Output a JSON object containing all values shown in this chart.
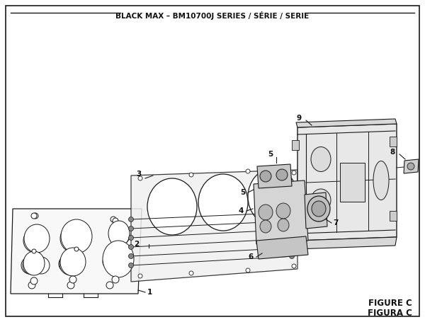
{
  "title": "BLACK MAX – BM10700J SERIES / SÉRIE / SERIE",
  "figure_label": "FIGURE C",
  "figura_label": "FIGURA C",
  "bg_color": "#ffffff",
  "border_color": "#1a1a1a",
  "line_color": "#1a1a1a",
  "title_fontsize": 7.5,
  "fig_label_fontsize": 8.5,
  "part_label_fontsize": 7.5
}
